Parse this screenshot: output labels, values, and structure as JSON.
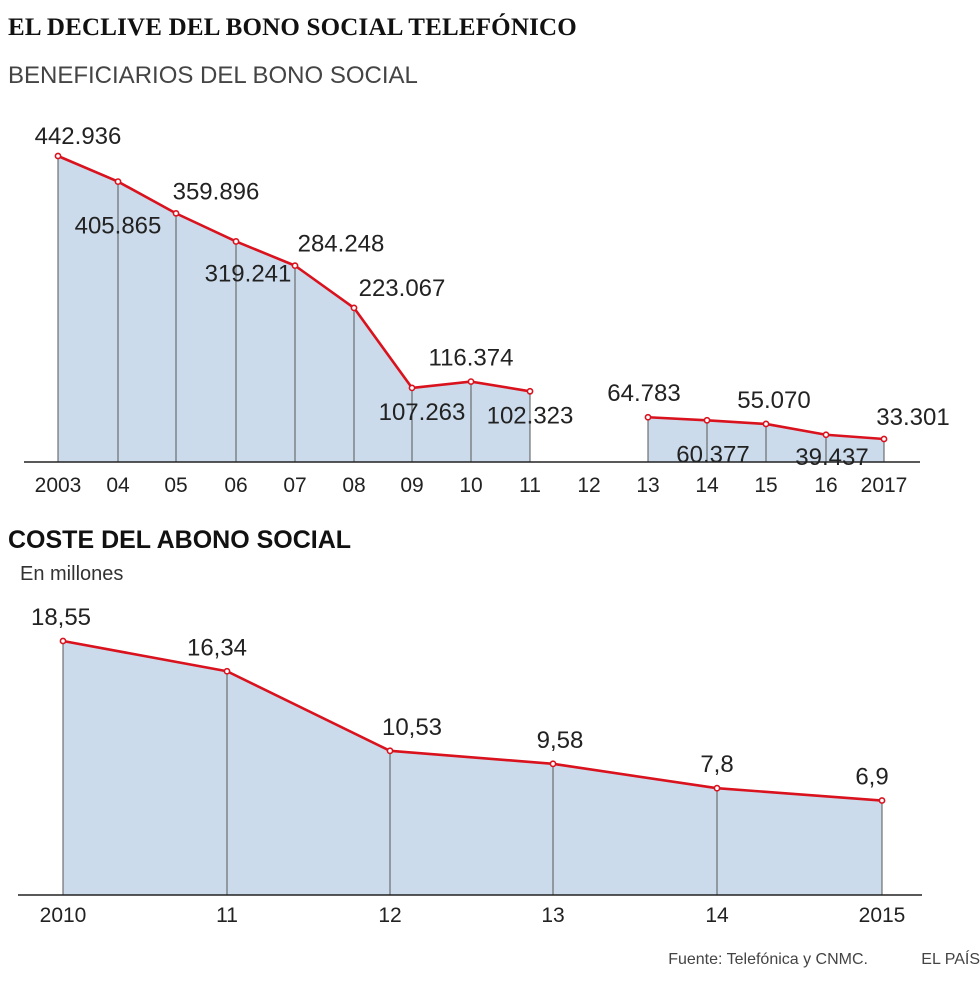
{
  "title": "EL DECLIVE DEL BONO SOCIAL TELEFÓNICO",
  "source": "Fuente: Telefónica y CNMC.",
  "brand": "EL PAÍS",
  "colors": {
    "line": "#d9121e",
    "fill": "#cbdbeb",
    "drop": "#555555"
  },
  "chart_data": [
    {
      "type": "area",
      "subtitle": "BENEFICIARIOS DEL BONO SOCIAL",
      "ticks": [
        "2003",
        "04",
        "05",
        "06",
        "07",
        "08",
        "09",
        "10",
        "11",
        "12",
        "13",
        "14",
        "15",
        "16",
        "2017"
      ],
      "segments": [
        {
          "x": [
            "2003",
            "04",
            "05",
            "06",
            "07",
            "08",
            "09",
            "10",
            "11"
          ],
          "values": [
            442936,
            405865,
            359896,
            319241,
            284248,
            223067,
            107263,
            116374,
            102323
          ],
          "labels": [
            "442.936",
            "405.865",
            "359.896",
            "319.241",
            "284.248",
            "223.067",
            "107.263",
            "116.374",
            "102.323"
          ]
        },
        {
          "x": [
            "13",
            "14",
            "15",
            "16",
            "2017"
          ],
          "values": [
            64783,
            60377,
            55070,
            39437,
            33301
          ],
          "labels": [
            "64.783",
            "60.377",
            "55.070",
            "39.437",
            "33.301"
          ]
        }
      ],
      "ylim": [
        0,
        442936
      ]
    },
    {
      "type": "area",
      "title": "COSTE DEL ABONO SOCIAL",
      "subtitle": "En millones",
      "ticks": [
        "2010",
        "11",
        "12",
        "13",
        "14",
        "2015"
      ],
      "segments": [
        {
          "x": [
            "2010",
            "11",
            "12",
            "13",
            "14",
            "2015"
          ],
          "values": [
            18.55,
            16.34,
            10.53,
            9.58,
            7.8,
            6.9
          ],
          "labels": [
            "18,55",
            "16,34",
            "10,53",
            "9,58",
            "7,8",
            "6,9"
          ]
        }
      ],
      "ylim": [
        0,
        18.55
      ]
    }
  ]
}
